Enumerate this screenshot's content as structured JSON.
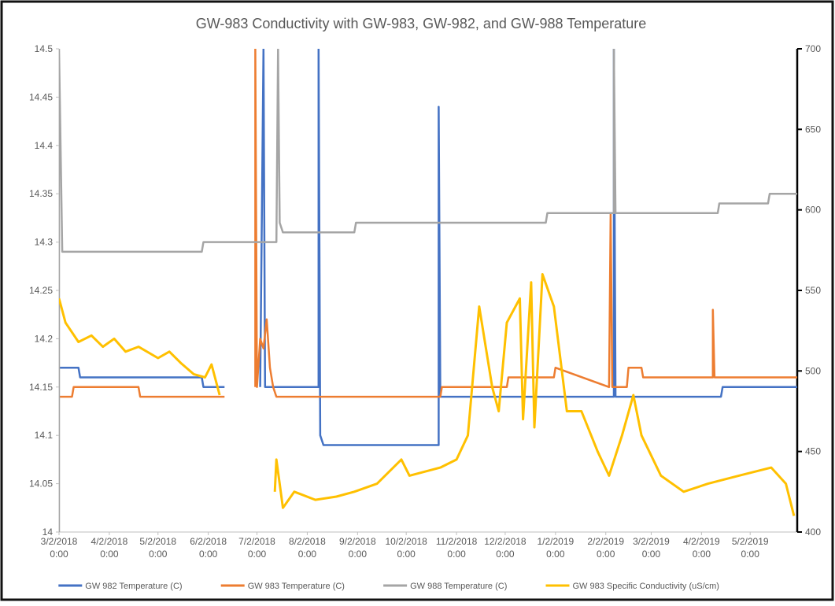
{
  "chart_data": {
    "type": "line",
    "title": "GW-983 Conductivity with GW-983, GW-982, and GW-988 Temperature",
    "xlim": [
      "2018-03-02",
      "2019-05-31"
    ],
    "xticks": [
      {
        "value": "2018-03-02",
        "label": "3/2/2018 0:00"
      },
      {
        "value": "2018-04-02",
        "label": "4/2/2018 0:00"
      },
      {
        "value": "2018-05-02",
        "label": "5/2/2018 0:00"
      },
      {
        "value": "2018-06-02",
        "label": "6/2/2018 0:00"
      },
      {
        "value": "2018-07-02",
        "label": "7/2/2018 0:00"
      },
      {
        "value": "2018-08-02",
        "label": "8/2/2018 0:00"
      },
      {
        "value": "2018-09-02",
        "label": "9/2/2018 0:00"
      },
      {
        "value": "2018-10-02",
        "label": "10/2/2018 0:00"
      },
      {
        "value": "2018-11-02",
        "label": "11/2/2018 0:00"
      },
      {
        "value": "2018-12-02",
        "label": "12/2/2018 0:00"
      },
      {
        "value": "2019-01-02",
        "label": "1/2/2019 0:00"
      },
      {
        "value": "2019-02-02",
        "label": "2/2/2019 0:00"
      },
      {
        "value": "2019-03-02",
        "label": "3/2/2019 0:00"
      },
      {
        "value": "2019-04-02",
        "label": "4/2/2019 0:00"
      },
      {
        "value": "2019-05-02",
        "label": "5/2/2019 0:00"
      }
    ],
    "ylim": [
      14,
      14.5
    ],
    "yticks": [
      14,
      14.05,
      14.1,
      14.15,
      14.2,
      14.25,
      14.3,
      14.35,
      14.4,
      14.45,
      14.5
    ],
    "y2lim": [
      400,
      700
    ],
    "y2ticks": [
      400,
      450,
      500,
      550,
      600,
      650,
      700
    ],
    "grid": false,
    "legend": "bottom",
    "series": [
      {
        "name": "GW 982 Temperature (C)",
        "color": "#4472c4",
        "x": [
          "2018-03-02",
          "2018-03-14",
          "2018-03-15",
          "2018-05-29",
          "2018-05-30",
          "2018-06-12",
          "2018-06-20",
          "2018-07-04",
          "2018-07-06",
          "2018-07-07",
          "2018-08-09",
          "2018-08-09",
          "2018-08-10",
          "2018-08-12",
          "2018-10-22",
          "2018-10-22",
          "2018-10-23",
          "2019-02-07",
          "2019-02-07",
          "2019-02-08",
          "2019-04-14",
          "2019-04-15",
          "2019-05-31"
        ],
        "values": [
          14.17,
          14.17,
          14.16,
          14.16,
          14.15,
          14.15,
          null,
          14.15,
          14.5,
          14.15,
          14.15,
          14.5,
          14.1,
          14.09,
          14.09,
          14.44,
          14.14,
          14.14,
          14.5,
          14.14,
          14.14,
          14.15,
          14.15
        ]
      },
      {
        "name": "GW 983 Temperature (C)",
        "color": "#ed7d31",
        "x": [
          "2018-03-02",
          "2018-03-10",
          "2018-03-11",
          "2018-04-20",
          "2018-04-21",
          "2018-06-12",
          "2018-06-20",
          "2018-07-01",
          "2018-07-01",
          "2018-07-02",
          "2018-07-04",
          "2018-07-06",
          "2018-07-08",
          "2018-07-10",
          "2018-07-12",
          "2018-07-14",
          "2018-10-23",
          "2018-10-24",
          "2018-12-03",
          "2018-12-04",
          "2019-01-01",
          "2019-01-02",
          "2019-02-04",
          "2019-02-05",
          "2019-02-06",
          "2019-02-15",
          "2019-02-16",
          "2019-02-24",
          "2019-02-25",
          "2019-04-09",
          "2019-04-09",
          "2019-04-10",
          "2019-05-31"
        ],
        "values": [
          14.14,
          14.14,
          14.15,
          14.15,
          14.14,
          14.14,
          null,
          14.15,
          14.5,
          14.15,
          14.2,
          14.19,
          14.22,
          14.17,
          14.15,
          14.14,
          14.14,
          14.15,
          14.15,
          14.16,
          14.16,
          14.17,
          14.15,
          14.33,
          14.15,
          14.15,
          14.17,
          14.17,
          14.16,
          14.16,
          14.23,
          14.16,
          14.16
        ]
      },
      {
        "name": "GW 988 Temperature (C)",
        "color": "#a5a5a5",
        "x": [
          "2018-03-02",
          "2018-03-02",
          "2018-03-04",
          "2018-05-29",
          "2018-05-30",
          "2018-07-14",
          "2018-07-15",
          "2018-07-16",
          "2018-07-18",
          "2018-07-20",
          "2018-08-31",
          "2018-09-01",
          "2018-10-23",
          "2018-12-27",
          "2018-12-28",
          "2019-02-07",
          "2019-02-07",
          "2019-02-08",
          "2019-04-12",
          "2019-04-13",
          "2019-05-13",
          "2019-05-14",
          "2019-05-31"
        ],
        "values": [
          14,
          14.5,
          14.29,
          14.29,
          14.3,
          14.3,
          14.5,
          14.32,
          14.31,
          14.31,
          14.31,
          14.32,
          14.32,
          14.32,
          14.33,
          14.33,
          14.5,
          14.33,
          14.33,
          14.34,
          14.34,
          14.35,
          14.35
        ]
      },
      {
        "name": "GW 983 Specific Conductivity (uS/cm)",
        "color": "#ffc000",
        "axis": "y2",
        "x": [
          "2018-03-02",
          "2018-03-06",
          "2018-03-14",
          "2018-03-22",
          "2018-03-29",
          "2018-04-05",
          "2018-04-12",
          "2018-04-20",
          "2018-05-02",
          "2018-05-09",
          "2018-05-16",
          "2018-05-24",
          "2018-05-31",
          "2018-06-04",
          "2018-06-09",
          "2018-06-20",
          "2018-07-13",
          "2018-07-14",
          "2018-07-18",
          "2018-07-25",
          "2018-08-07",
          "2018-08-20",
          "2018-08-31",
          "2018-09-14",
          "2018-09-29",
          "2018-10-04",
          "2018-10-23",
          "2018-11-02",
          "2018-11-09",
          "2018-11-16",
          "2018-11-24",
          "2018-11-28",
          "2018-12-03",
          "2018-12-11",
          "2018-12-13",
          "2018-12-18",
          "2018-12-20",
          "2018-12-25",
          "2019-01-01",
          "2019-01-09",
          "2019-01-18",
          "2019-01-28",
          "2019-02-04",
          "2019-02-12",
          "2019-02-19",
          "2019-02-24",
          "2019-03-08",
          "2019-03-22",
          "2019-04-06",
          "2019-04-25",
          "2019-05-15",
          "2019-05-24",
          "2019-05-29"
        ],
        "values": [
          545,
          530,
          518,
          522,
          515,
          520,
          512,
          515,
          508,
          512,
          505,
          498,
          496,
          504,
          485,
          null,
          425,
          445,
          415,
          425,
          420,
          422,
          425,
          430,
          445,
          435,
          440,
          445,
          460,
          540,
          490,
          475,
          530,
          545,
          470,
          555,
          465,
          560,
          540,
          475,
          475,
          450,
          435,
          460,
          485,
          460,
          435,
          425,
          430,
          435,
          440,
          430,
          410
        ]
      }
    ]
  }
}
